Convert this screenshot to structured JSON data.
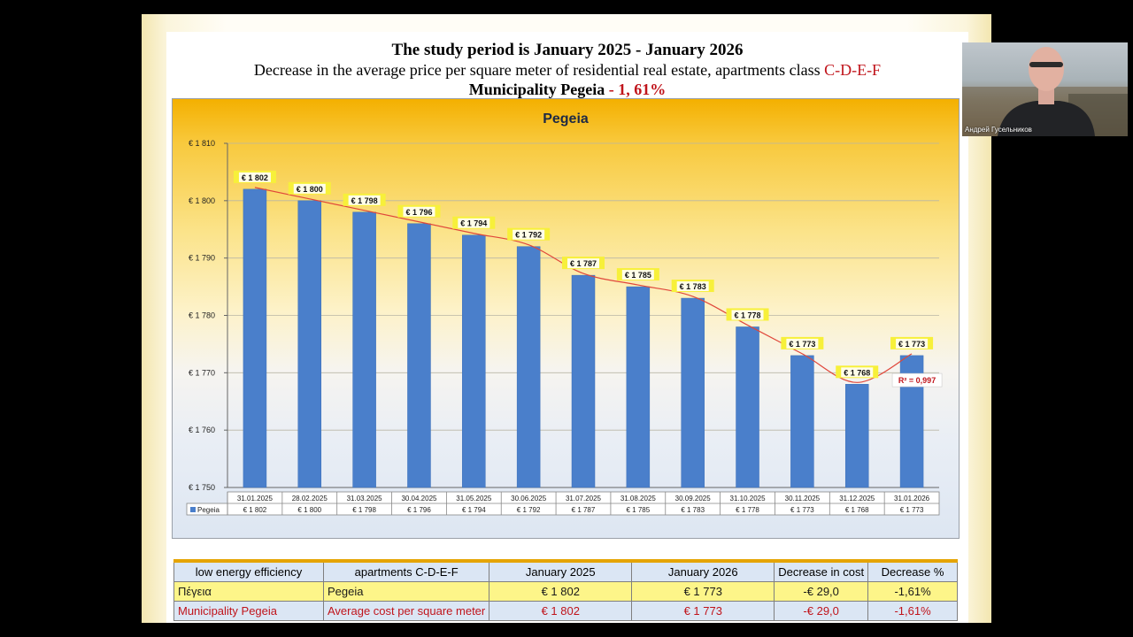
{
  "slide": {
    "title_line1": "The study period is January 2025 - January 2026",
    "title_line2_text": "Decrease in the average price per square meter of residential real estate, apartments class ",
    "title_line2_red": "C-D-E-F",
    "title_line3_text": "Municipality Pegeia",
    "title_line3_red": " - 1, 61%"
  },
  "chart_data": {
    "type": "bar",
    "title": "Pegeia",
    "categories": [
      "31.01.2025",
      "28.02.2025",
      "31.03.2025",
      "30.04.2025",
      "31.05.2025",
      "30.06.2025",
      "31.07.2025",
      "31.08.2025",
      "30.09.2025",
      "31.10.2025",
      "30.11.2025",
      "31.12.2025",
      "31.01.2026"
    ],
    "series": [
      {
        "name": "Pegeia",
        "values": [
          1802,
          1800,
          1798,
          1796,
          1794,
          1792,
          1787,
          1785,
          1783,
          1778,
          1773,
          1768,
          1773
        ],
        "labels": [
          "€ 1 802",
          "€ 1 800",
          "€ 1 798",
          "€ 1 796",
          "€ 1 794",
          "€ 1 792",
          "€ 1 787",
          "€ 1 785",
          "€ 1 783",
          "€ 1 778",
          "€ 1 773",
          "€ 1 768",
          "€ 1 773"
        ],
        "color": "#4a7fcb"
      }
    ],
    "ylim": [
      1750,
      1810
    ],
    "yticks": [
      1750,
      1760,
      1770,
      1780,
      1790,
      1800,
      1810
    ],
    "ytick_labels": [
      "€ 1 750",
      "€ 1 760",
      "€ 1 770",
      "€ 1 780",
      "€ 1 790",
      "€ 1 800",
      "€ 1 810"
    ],
    "trendline": {
      "type": "polynomial",
      "color": "#e0473a",
      "r2_label": "R² = 0,997"
    },
    "legend_label": "Pegeia",
    "data_table_below": true
  },
  "summary_table": {
    "headers": [
      "low energy efficiency",
      "apartments C-D-E-F",
      "January 2025",
      "January 2026",
      "Decrease in cost",
      "Decrease %"
    ],
    "rows": [
      [
        "Πέγεια",
        "Pegeia",
        "€ 1 802",
        "€ 1 773",
        "-€ 29,0",
        "-1,61%"
      ],
      [
        "Municipality Pegeia",
        "Average cost per square meter",
        "€ 1 802",
        "€ 1 773",
        "-€ 29,0",
        "-1,61%"
      ]
    ]
  },
  "webcam": {
    "name": "Андрей Гусельников"
  },
  "colors": {
    "accent_red": "#c0141b",
    "bar_blue": "#4a7fcb",
    "label_yellow": "#f7f03a"
  }
}
